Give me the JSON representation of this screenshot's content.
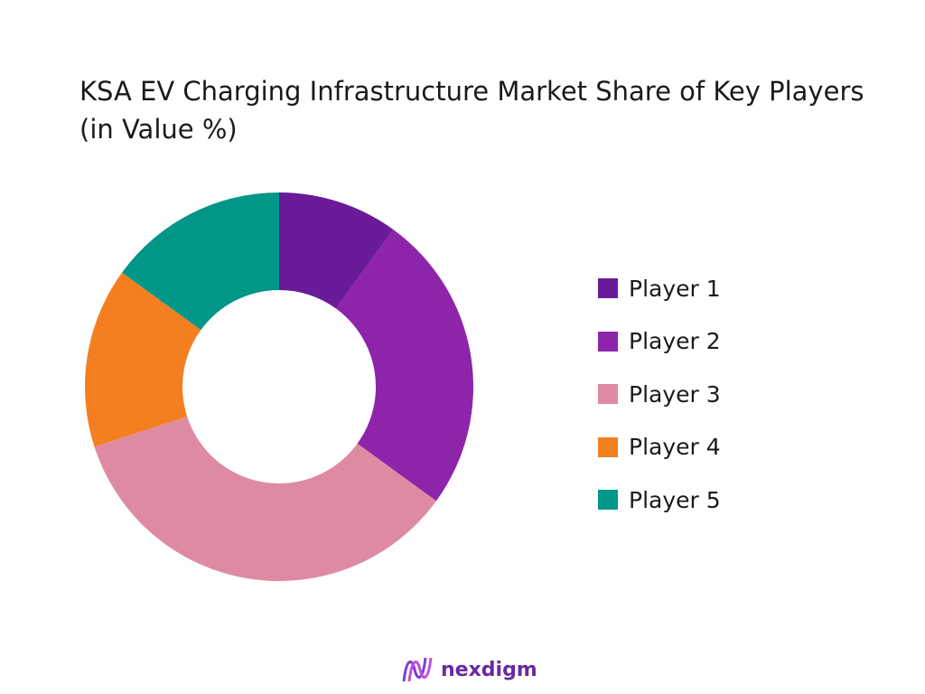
{
  "chart_data": {
    "type": "pie",
    "variant": "donut",
    "title": "KSA EV Charging Infrastructure Market Share of Key Players (in Value %)",
    "categories": [
      "Player 1",
      "Player 2",
      "Player 3",
      "Player 4",
      "Player 5"
    ],
    "values": [
      10,
      25,
      35,
      15,
      15
    ],
    "colors": [
      "#6a1b9a",
      "#8e24aa",
      "#df8aa3",
      "#f47f20",
      "#009688"
    ],
    "legend_position": "right"
  },
  "logo": {
    "text": "nexdigm"
  }
}
